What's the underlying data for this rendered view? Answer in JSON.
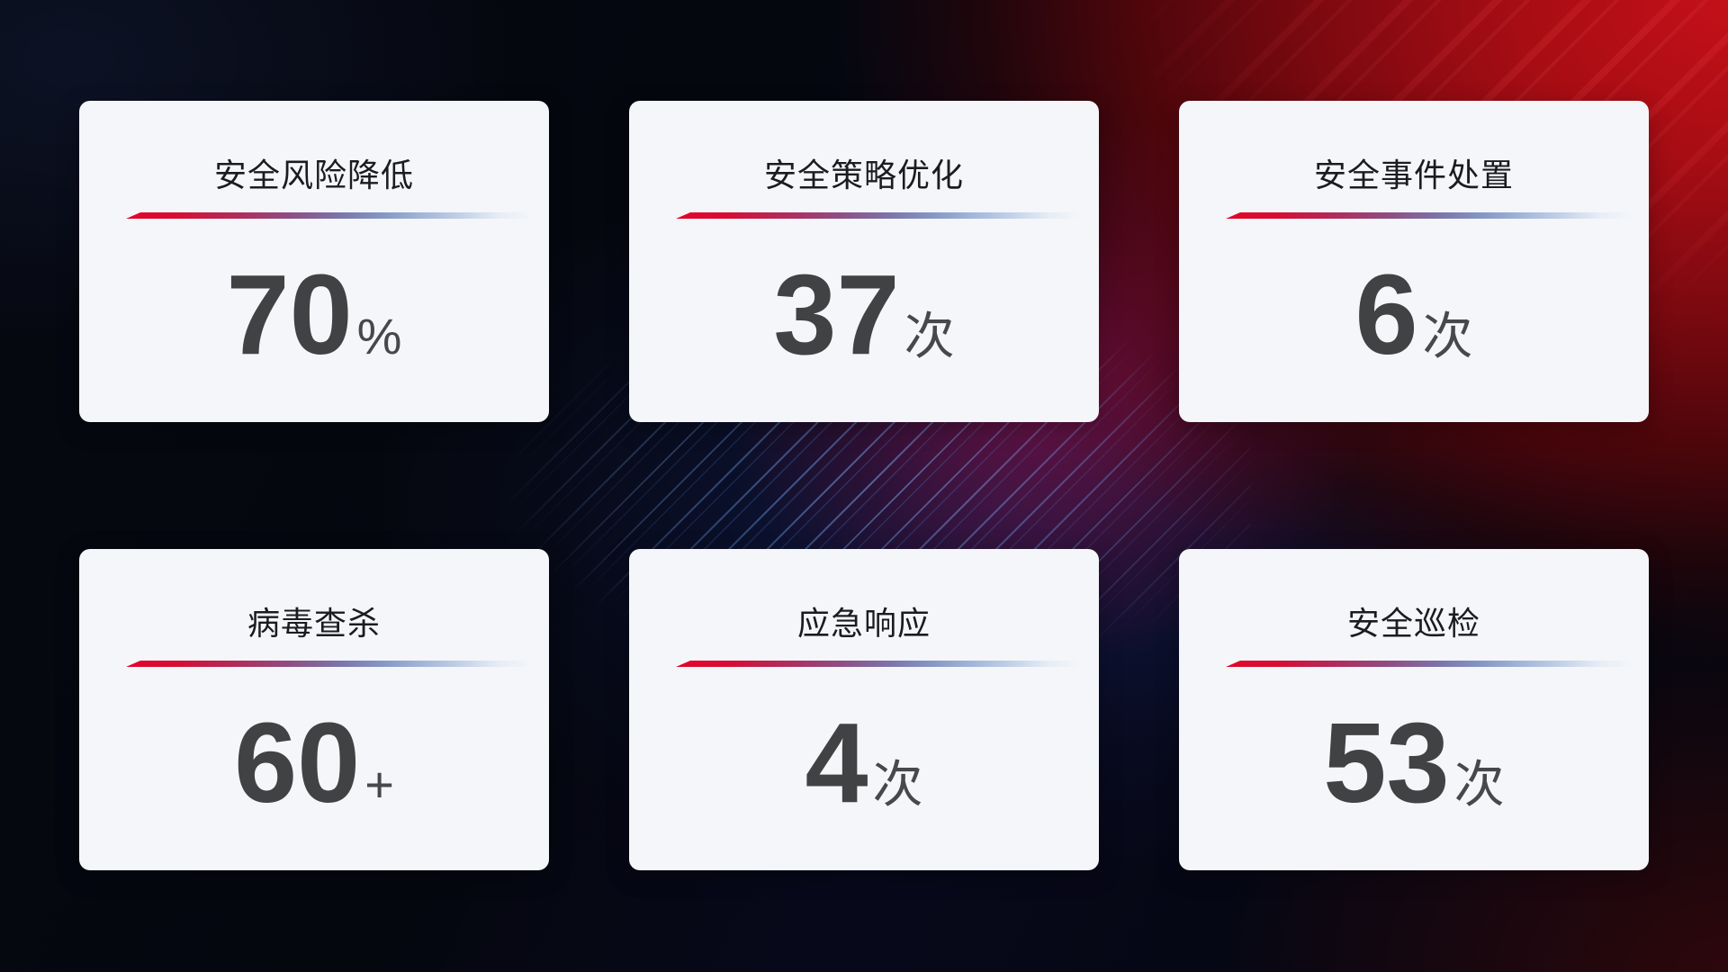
{
  "stat_cards": [
    {
      "title": "安全风险降低",
      "value": "70",
      "unit": "%"
    },
    {
      "title": "安全策略优化",
      "value": "37",
      "unit": "次"
    },
    {
      "title": "安全事件处置",
      "value": "6",
      "unit": "次"
    },
    {
      "title": "病毒查杀",
      "value": "60",
      "unit": "+"
    },
    {
      "title": "应急响应",
      "value": "4",
      "unit": "次"
    },
    {
      "title": "安全巡检",
      "value": "53",
      "unit": "次"
    }
  ],
  "colors": {
    "card_background": "#f4f6f9",
    "title_text": "#1b1c1f",
    "value_text": "#414244",
    "divider_gradient_start": "#e2062a",
    "divider_gradient_mid": "#7b74ab",
    "divider_gradient_end": "#c3d2e8",
    "background_navy": "#05070f",
    "background_red_bright": "#c41019",
    "background_red_dark": "#4b060b",
    "background_magenta_glow": "#c40e4e",
    "streak_blue": "#74a4ec"
  }
}
